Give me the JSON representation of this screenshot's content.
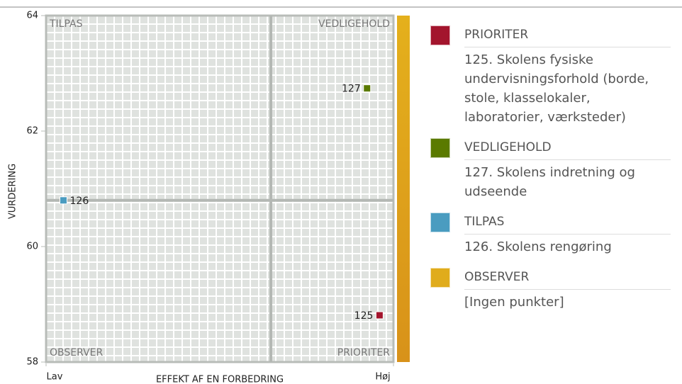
{
  "chart_data": {
    "type": "scatter",
    "y_label": "VURDERING",
    "x_label": "EFFEKT AF EN FORBEDRING",
    "xlim": [
      0,
      100
    ],
    "xticks": [
      {
        "value": 0,
        "label": "Lav"
      },
      {
        "value": 100,
        "label": "Høj"
      }
    ],
    "ylim": [
      58,
      64
    ],
    "yticks": [
      58,
      60,
      62,
      64
    ],
    "divider": {
      "x": 64.7,
      "y": 60.8
    },
    "quadrants": {
      "top_left": "TILPAS",
      "top_right": "VEDLIGEHOLD",
      "bottom_left": "OBSERVER",
      "bottom_right": "PRIORITER"
    },
    "series": [
      {
        "name": "PRIORITER",
        "color": "#a3152d",
        "x": [
          96
        ],
        "values": [
          58.81
        ],
        "labels": [
          "125"
        ],
        "description": "125. Skolens fysiske undervisningsforhold (borde, stole, klasselokaler, laboratorier, værksteder)"
      },
      {
        "name": "VEDLIGEHOLD",
        "color": "#5a7a00",
        "x": [
          92.4
        ],
        "values": [
          62.74
        ],
        "labels": [
          "127"
        ],
        "description": "127. Skolens indretning og udseende"
      },
      {
        "name": "TILPAS",
        "color": "#4a9cc0",
        "x": [
          5
        ],
        "values": [
          60.8
        ],
        "labels": [
          "126"
        ],
        "description": "126. Skolens rengøring"
      },
      {
        "name": "OBSERVER",
        "color": "#e0ac1c",
        "x": [],
        "values": [],
        "labels": [],
        "description": "[Ingen punkter]"
      }
    ]
  }
}
